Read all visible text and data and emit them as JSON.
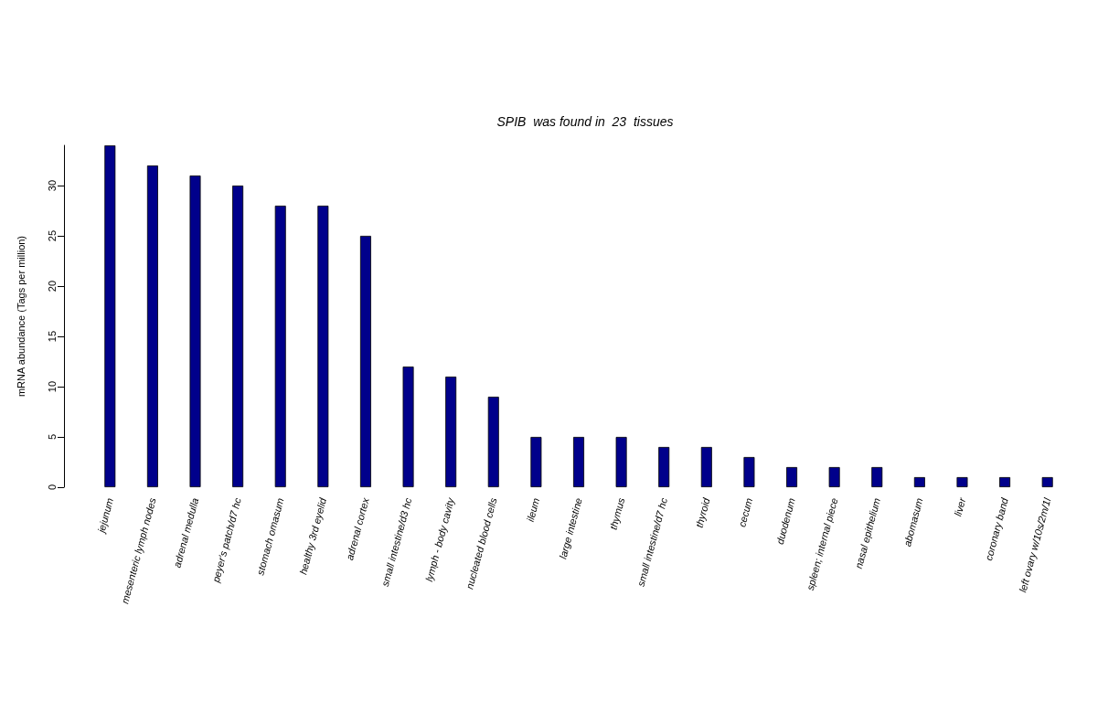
{
  "chart_data": {
    "type": "bar",
    "title": "SPIB  was found in  23  tissues",
    "ylabel": "mRNA abundance (Tags per million)",
    "categories": [
      "jejunum",
      "mesenteric lymph nodes",
      "adrenal medulla",
      "peyer's patch/d7 hc",
      "stomach omasum",
      "healthy 3rd eyelid",
      "adrenal cortex",
      "small intestine/d3 hc",
      "lymph - body cavity",
      "nucleated blood cells",
      "ileum",
      "large intestine",
      "thymus",
      "small intestine/d7 hc",
      "thyroid",
      "cecum",
      "duodenum",
      "spleen; internal piece",
      "nasal epithelium",
      "abomasum",
      "liver",
      "coronary band",
      "left ovary w/10s/2m/1l"
    ],
    "values": [
      34,
      32,
      31,
      30,
      28,
      28,
      25,
      12,
      11,
      9,
      5,
      5,
      5,
      4,
      4,
      3,
      2,
      2,
      2,
      1,
      1,
      1,
      1
    ],
    "color": "#00008b",
    "ylim": [
      0,
      34
    ],
    "yticks": [
      0,
      5,
      10,
      15,
      20,
      25,
      30
    ],
    "grid": false
  }
}
